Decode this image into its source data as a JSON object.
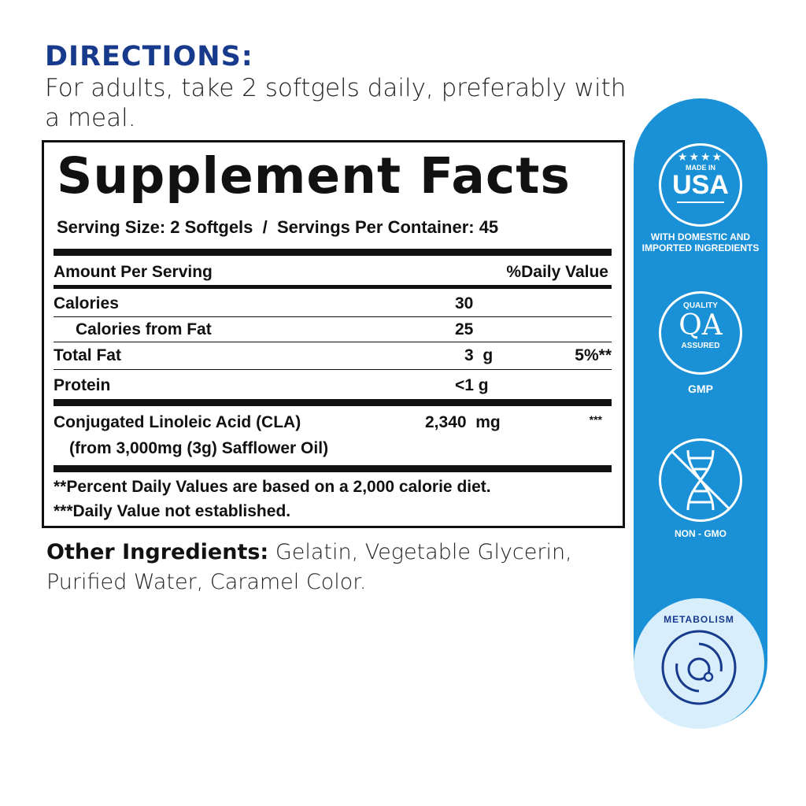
{
  "directions": {
    "title": "DIRECTIONS:",
    "text": "For adults, take 2 softgels daily, preferably with a meal."
  },
  "facts": {
    "title": "Supplement Facts",
    "serving": "Serving Size: 2 Softgels  /  Servings Per Container: 45",
    "header_amount": "Amount Per Serving",
    "header_dv": "%Daily Value",
    "rows": [
      {
        "name": "Calories",
        "amount": "30",
        "dv": ""
      },
      {
        "name": "Calories from Fat",
        "amount": "25",
        "dv": ""
      },
      {
        "name": "Total Fat",
        "amount": "3  g",
        "dv": "5%**"
      },
      {
        "name": "Protein",
        "amount": "<1 g",
        "dv": ""
      },
      {
        "name": "Conjugated Linoleic Acid (CLA)",
        "sub": "(from 3,000mg (3g) Safflower Oil)",
        "amount": "2,340  mg",
        "dv": "***"
      }
    ],
    "footnote1": "**Percent Daily Values are based on a 2,000 calorie diet.",
    "footnote2": "***Daily Value not established."
  },
  "other": {
    "label": "Other Ingredients:",
    "text": " Gelatin, Vegetable Glycerin, Purified Water, Caramel Color."
  },
  "badges": {
    "usa_top": "MADE IN",
    "usa_main": "USA",
    "usa_caption": "WITH DOMESTIC AND IMPORTED INGREDIENTS",
    "qa_top": "QUALITY",
    "qa_main": "QA",
    "qa_bottom": "ASSURED",
    "qa_caption": "GMP",
    "gmo_caption": "NON - GMO",
    "metabolism": "METABOLISM"
  },
  "colors": {
    "navy": "#173a8c",
    "blue": "#1a90d6",
    "light_blue": "#d8eefb"
  }
}
